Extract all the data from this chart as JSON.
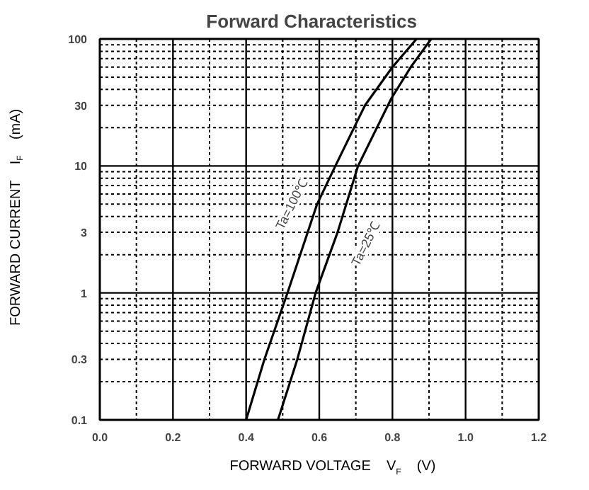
{
  "chart_data": {
    "type": "line",
    "title": "Forward    Characteristics",
    "xlabel": "FORWARD VOLTAGE    V$_{F}$    (V)",
    "ylabel": "FORWARD CURRENT    I$_{F}$    (mA)",
    "log": "y",
    "grid": true,
    "marker": "none",
    "line_style": "solid",
    "xlim": [
      0.0,
      1.2
    ],
    "ylim": [
      0.1,
      100
    ],
    "xticks": [
      {
        "value": 0,
        "label": "0.0"
      },
      0.2,
      0.4,
      0.6,
      0.8,
      {
        "value": 1,
        "label": "1.0"
      },
      1.2
    ],
    "yticks": [
      0.1,
      0.3,
      1,
      3,
      10,
      30,
      100
    ],
    "series": [
      {
        "color": "#000000",
        "x": [
          0.4,
          0.45,
          0.513,
          0.594,
          0.644,
          0.725,
          0.8,
          0.866
        ],
        "values": [
          0.1,
          0.3,
          1,
          5,
          10,
          30,
          60,
          100
        ]
      },
      {
        "color": "#000000",
        "x": [
          0.487,
          0.54,
          0.59,
          0.65,
          0.706,
          0.797,
          0.85,
          0.906
        ],
        "values": [
          0.1,
          0.3,
          1,
          3,
          10,
          34,
          60,
          100
        ]
      }
    ],
    "annotations": [
      "Ta=100℃",
      "Ta=25℃"
    ]
  }
}
